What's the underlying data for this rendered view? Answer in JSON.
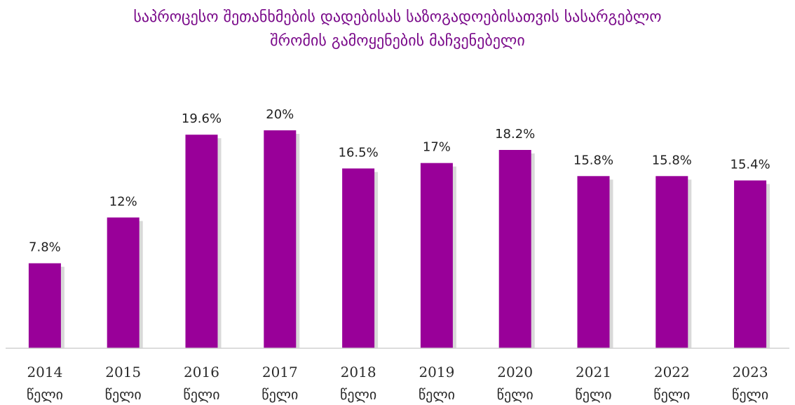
{
  "chart_data": {
    "type": "bar",
    "title_lines": [
      "საპროცესო შეთანხმების დადებისას საზოგადოებისათვის სასარგებლო",
      "შრომის გამოყენების მაჩვენებელი"
    ],
    "categories": [
      [
        "2014",
        "წელი"
      ],
      [
        "2015",
        "წელი"
      ],
      [
        "2016",
        "წელი"
      ],
      [
        "2017",
        "წელი"
      ],
      [
        "2018",
        "წელი"
      ],
      [
        "2019",
        "წელი"
      ],
      [
        "2020",
        "წელი"
      ],
      [
        "2021",
        "წელი"
      ],
      [
        "2022",
        "წელი"
      ],
      [
        "2023",
        "წელი"
      ]
    ],
    "values": [
      7.8,
      12,
      19.6,
      20,
      16.5,
      17,
      18.2,
      15.8,
      15.8,
      15.4
    ],
    "value_labels": [
      "7.8%",
      "12%",
      "19.6%",
      "20%",
      "16.5%",
      "17%",
      "18.2%",
      "15.8%",
      "15.8%",
      "15.4%"
    ],
    "ylim": [
      0,
      20
    ],
    "grid": false,
    "legend": "none",
    "colors": {
      "bar": "#990099",
      "bar_shadow": "#d9d9d9",
      "title": "#7a0a8a",
      "axis": "#d0d0d0"
    }
  }
}
